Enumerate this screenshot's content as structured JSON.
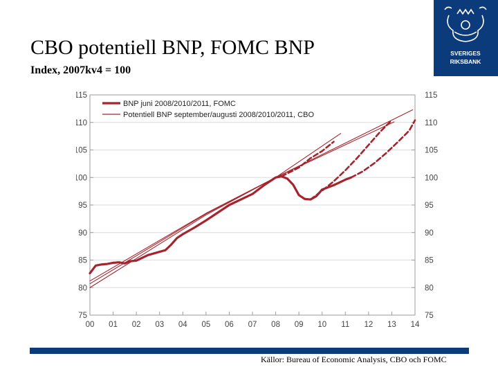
{
  "slide": {
    "title": "CBO potentiell BNP, FOMC BNP",
    "subtitle": "Index, 2007kv4 = 100",
    "source": "Källor: Bureau of Economic Analysis, CBO och FOMC"
  },
  "logo": {
    "line1": "SVERIGES",
    "line2": "RIKSBANK",
    "color": "#0b3b7a"
  },
  "chart_data": {
    "type": "line",
    "title": "",
    "xlabel": "",
    "ylabel": "",
    "x_range": [
      2000,
      2014
    ],
    "ylim": [
      75,
      115
    ],
    "x_ticks": [
      "00",
      "01",
      "02",
      "03",
      "04",
      "05",
      "06",
      "07",
      "08",
      "09",
      "10",
      "11",
      "12",
      "13",
      "14"
    ],
    "y_ticks": [
      75,
      80,
      85,
      90,
      95,
      100,
      105,
      110,
      115
    ],
    "grid": true,
    "legend_position": "top-left",
    "color": "#a5242e",
    "legend": [
      {
        "label": "BNP juni 2008/2010/2011, FOMC",
        "style": "thick"
      },
      {
        "label": "Potentiell BNP september/augusti 2008/2010/2011, CBO",
        "style": "thin"
      }
    ],
    "series": [
      {
        "name": "BNP juni 2008/2010/2011, FOMC",
        "style": "thick",
        "points": [
          [
            2000,
            82.6
          ],
          [
            2000.25,
            84.0
          ],
          [
            2000.5,
            84.2
          ],
          [
            2000.75,
            84.3
          ],
          [
            2001,
            84.5
          ],
          [
            2001.25,
            84.6
          ],
          [
            2001.5,
            84.4
          ],
          [
            2001.75,
            84.8
          ],
          [
            2002,
            84.9
          ],
          [
            2002.25,
            85.4
          ],
          [
            2002.5,
            85.9
          ],
          [
            2002.75,
            86.2
          ],
          [
            2003,
            86.5
          ],
          [
            2003.25,
            86.8
          ],
          [
            2003.5,
            87.8
          ],
          [
            2003.75,
            89.0
          ],
          [
            2004,
            89.7
          ],
          [
            2004.5,
            90.9
          ],
          [
            2005,
            92.2
          ],
          [
            2005.5,
            93.6
          ],
          [
            2006,
            95.0
          ],
          [
            2006.5,
            96.0
          ],
          [
            2007,
            97.0
          ],
          [
            2007.5,
            98.6
          ],
          [
            2008,
            100.0
          ],
          [
            2008.25,
            100.2
          ],
          [
            2008.5,
            99.8
          ],
          [
            2008.75,
            98.7
          ],
          [
            2009,
            96.8
          ],
          [
            2009.25,
            96.1
          ],
          [
            2009.5,
            96.0
          ],
          [
            2009.75,
            96.6
          ],
          [
            2010,
            97.8
          ],
          [
            2010.25,
            98.2
          ],
          [
            2010.5,
            98.6
          ],
          [
            2010.75,
            99.1
          ],
          [
            2011,
            99.6
          ],
          [
            2011.25,
            100.0
          ]
        ]
      },
      {
        "name": "",
        "style": "thick-dashed",
        "points": [
          [
            2009.5,
            96.0
          ],
          [
            2010,
            97.6
          ],
          [
            2010.5,
            99.3
          ],
          [
            2011,
            101.3
          ],
          [
            2011.5,
            103.5
          ],
          [
            2012,
            105.9
          ],
          [
            2012.5,
            108.3
          ],
          [
            2013,
            110.4
          ]
        ]
      },
      {
        "name": "",
        "style": "thick-dashed",
        "points": [
          [
            2011.25,
            100.0
          ],
          [
            2011.75,
            101.1
          ],
          [
            2012.25,
            102.6
          ],
          [
            2012.75,
            104.4
          ],
          [
            2013.25,
            106.4
          ],
          [
            2013.75,
            108.5
          ],
          [
            2014,
            110.4
          ]
        ]
      },
      {
        "name": "",
        "style": "thick-dashed",
        "points": [
          [
            2008.25,
            100.2
          ],
          [
            2009,
            101.8
          ],
          [
            2009.5,
            103.5
          ],
          [
            2010,
            104.8
          ],
          [
            2010.5,
            106.5
          ]
        ]
      },
      {
        "name": "Potentiell BNP september/augusti 2008/2010/2011, CBO",
        "style": "thin",
        "points": [
          [
            2000,
            80.0
          ],
          [
            2005,
            93.2
          ],
          [
            2008,
            100.0
          ],
          [
            2010.8,
            108.0
          ]
        ]
      },
      {
        "name": "",
        "style": "thin",
        "points": [
          [
            2000,
            80.7
          ],
          [
            2005,
            93.4
          ],
          [
            2008,
            100.0
          ],
          [
            2013.1,
            110.1
          ]
        ]
      },
      {
        "name": "",
        "style": "thin",
        "points": [
          [
            2000,
            81.2
          ],
          [
            2005,
            93.5
          ],
          [
            2008,
            100.0
          ],
          [
            2013.9,
            112.3
          ]
        ]
      }
    ]
  }
}
